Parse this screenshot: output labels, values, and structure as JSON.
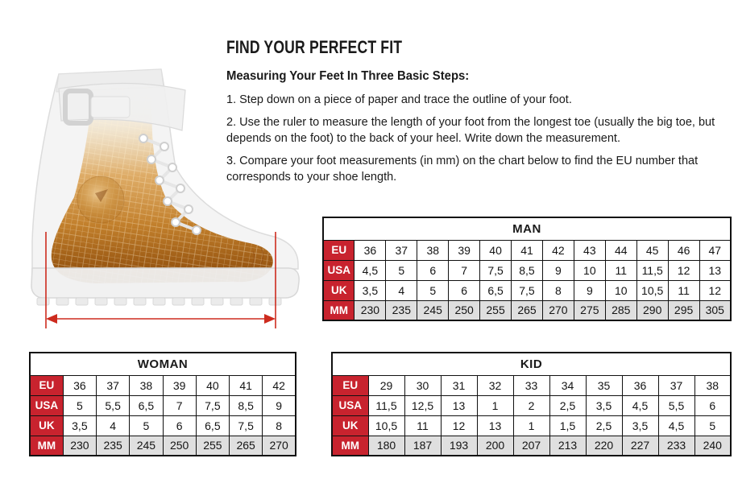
{
  "header": {
    "title": "FIND YOUR PERFECT FIT",
    "subtitle": "Measuring Your Feet In Three Basic Steps:",
    "steps": [
      "1. Step down on a piece of paper and trace the outline of your foot.",
      "2. Use the ruler to measure the length of your foot from the longest toe (usually the big toe, but depends on the foot) to the back of your heel. Write down the measurement.",
      "3. Compare your foot measurements (in mm) on the chart below to find the EU number that corresponds to your shoe length."
    ]
  },
  "illustration": {
    "name": "translucent-boot-with-foot-length-measurement",
    "measure_line_color": "#cd2b1e"
  },
  "colors": {
    "accent_red": "#c8232e",
    "mm_row_gray": "#dfdfdf",
    "table_border": "#111111",
    "text": "#1a1a1a"
  },
  "tables": {
    "man": {
      "title": "MAN",
      "row_headers": [
        "EU",
        "USA",
        "UK",
        "MM"
      ],
      "rows": [
        [
          "36",
          "37",
          "38",
          "39",
          "40",
          "41",
          "42",
          "43",
          "44",
          "45",
          "46",
          "47"
        ],
        [
          "4,5",
          "5",
          "6",
          "7",
          "7,5",
          "8,5",
          "9",
          "10",
          "11",
          "11,5",
          "12",
          "13"
        ],
        [
          "3,5",
          "4",
          "5",
          "6",
          "6,5",
          "7,5",
          "8",
          "9",
          "10",
          "10,5",
          "11",
          "12"
        ],
        [
          "230",
          "235",
          "245",
          "250",
          "255",
          "265",
          "270",
          "275",
          "285",
          "290",
          "295",
          "305"
        ]
      ]
    },
    "woman": {
      "title": "WOMAN",
      "row_headers": [
        "EU",
        "USA",
        "UK",
        "MM"
      ],
      "rows": [
        [
          "36",
          "37",
          "38",
          "39",
          "40",
          "41",
          "42"
        ],
        [
          "5",
          "5,5",
          "6,5",
          "7",
          "7,5",
          "8,5",
          "9"
        ],
        [
          "3,5",
          "4",
          "5",
          "6",
          "6,5",
          "7,5",
          "8"
        ],
        [
          "230",
          "235",
          "245",
          "250",
          "255",
          "265",
          "270"
        ]
      ]
    },
    "kid": {
      "title": "KID",
      "row_headers": [
        "EU",
        "USA",
        "UK",
        "MM"
      ],
      "rows": [
        [
          "29",
          "30",
          "31",
          "32",
          "33",
          "34",
          "35",
          "36",
          "37",
          "38"
        ],
        [
          "11,5",
          "12,5",
          "13",
          "1",
          "2",
          "2,5",
          "3,5",
          "4,5",
          "5,5",
          "6"
        ],
        [
          "10,5",
          "11",
          "12",
          "13",
          "1",
          "1,5",
          "2,5",
          "3,5",
          "4,5",
          "5"
        ],
        [
          "180",
          "187",
          "193",
          "200",
          "207",
          "213",
          "220",
          "227",
          "233",
          "240"
        ]
      ]
    }
  }
}
